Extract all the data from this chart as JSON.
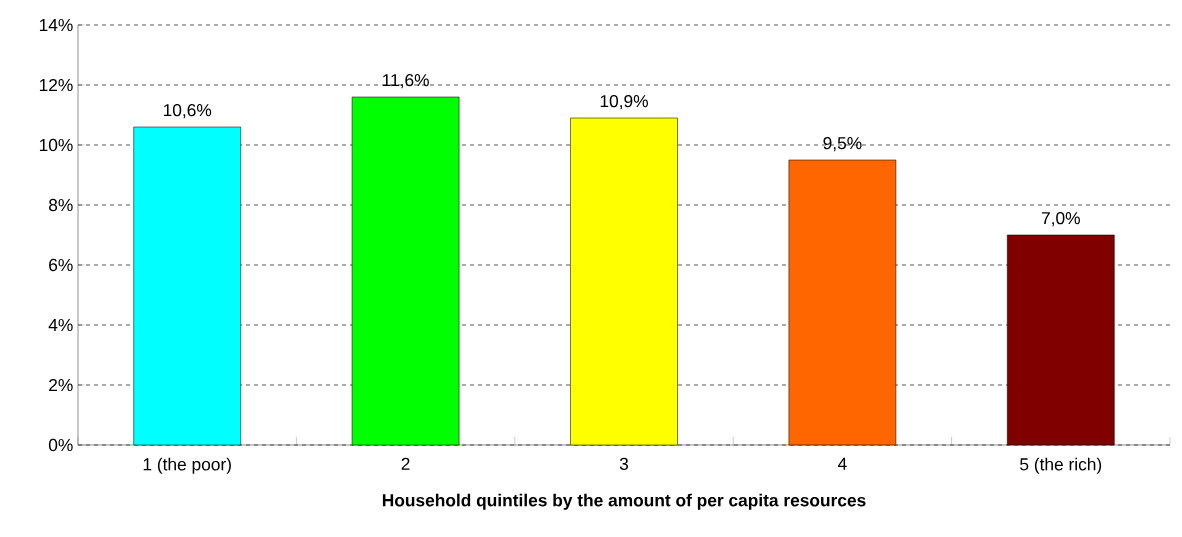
{
  "chart_data": {
    "type": "bar",
    "xlabel": "Household quintiles by the amount of per capita resources",
    "categories": [
      "1 (the poor)",
      "2",
      "3",
      "4",
      "5 (the rich)"
    ],
    "values": [
      10.6,
      11.6,
      10.9,
      9.5,
      7.0
    ],
    "colors": [
      "#00ffff",
      "#00ff00",
      "#ffff00",
      "#ff6600",
      "#800000"
    ],
    "value_labels": [
      "10,6%",
      "11,6%",
      "10,9%",
      "9,5%",
      "7,0%"
    ],
    "ylim": [
      0,
      14
    ],
    "yticks": [
      {
        "value": 0,
        "label": "0%"
      },
      {
        "value": 2,
        "label": "2%"
      },
      {
        "value": 4,
        "label": "4%"
      },
      {
        "value": 6,
        "label": "6%"
      },
      {
        "value": 8,
        "label": "8%"
      },
      {
        "value": 10,
        "label": "10%"
      },
      {
        "value": 12,
        "label": "12%"
      },
      {
        "value": 14,
        "label": "14%"
      }
    ],
    "grid": "y"
  }
}
